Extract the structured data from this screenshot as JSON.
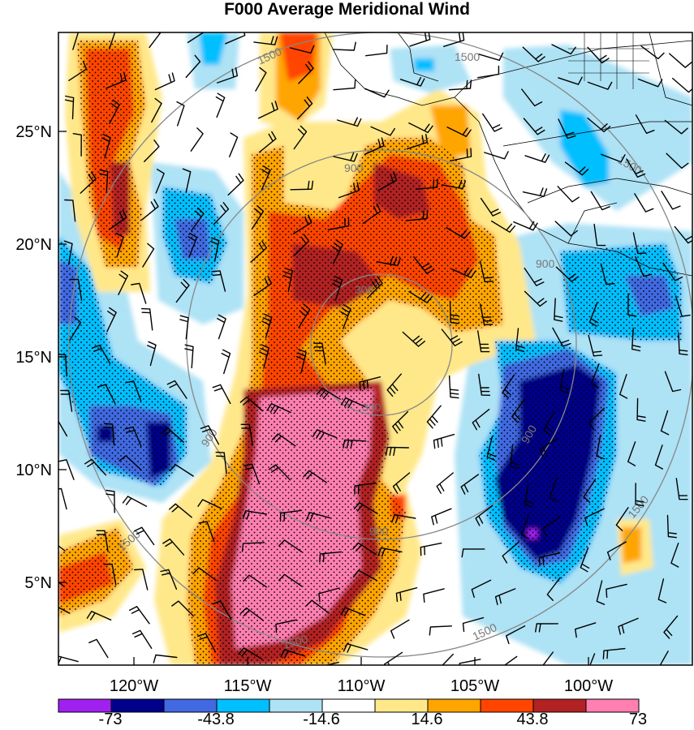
{
  "title": "F000 Average Meridional Wind",
  "map": {
    "lat_labels": [
      "25°N",
      "20°N",
      "15°N",
      "10°N",
      "5°N"
    ],
    "lon_labels": [
      "120°W",
      "115°W",
      "110°W",
      "105°W",
      "100°W"
    ],
    "ring_labels": [
      "300",
      "300",
      "900",
      "900",
      "900",
      "900",
      "900",
      "1500",
      "1500",
      "1500",
      "1500",
      "1500",
      "1500",
      "1500"
    ]
  },
  "colorbar": {
    "colors": [
      "#a020f0",
      "#00008b",
      "#4169e1",
      "#00bfff",
      "#aee2f5",
      "#ffffff",
      "#ffe88a",
      "#ffa500",
      "#ff4500",
      "#b22222",
      "#ff7fb0"
    ],
    "tick_labels": [
      "-73",
      "-43.8",
      "-14.6",
      "14.6",
      "43.8",
      "73"
    ]
  }
}
